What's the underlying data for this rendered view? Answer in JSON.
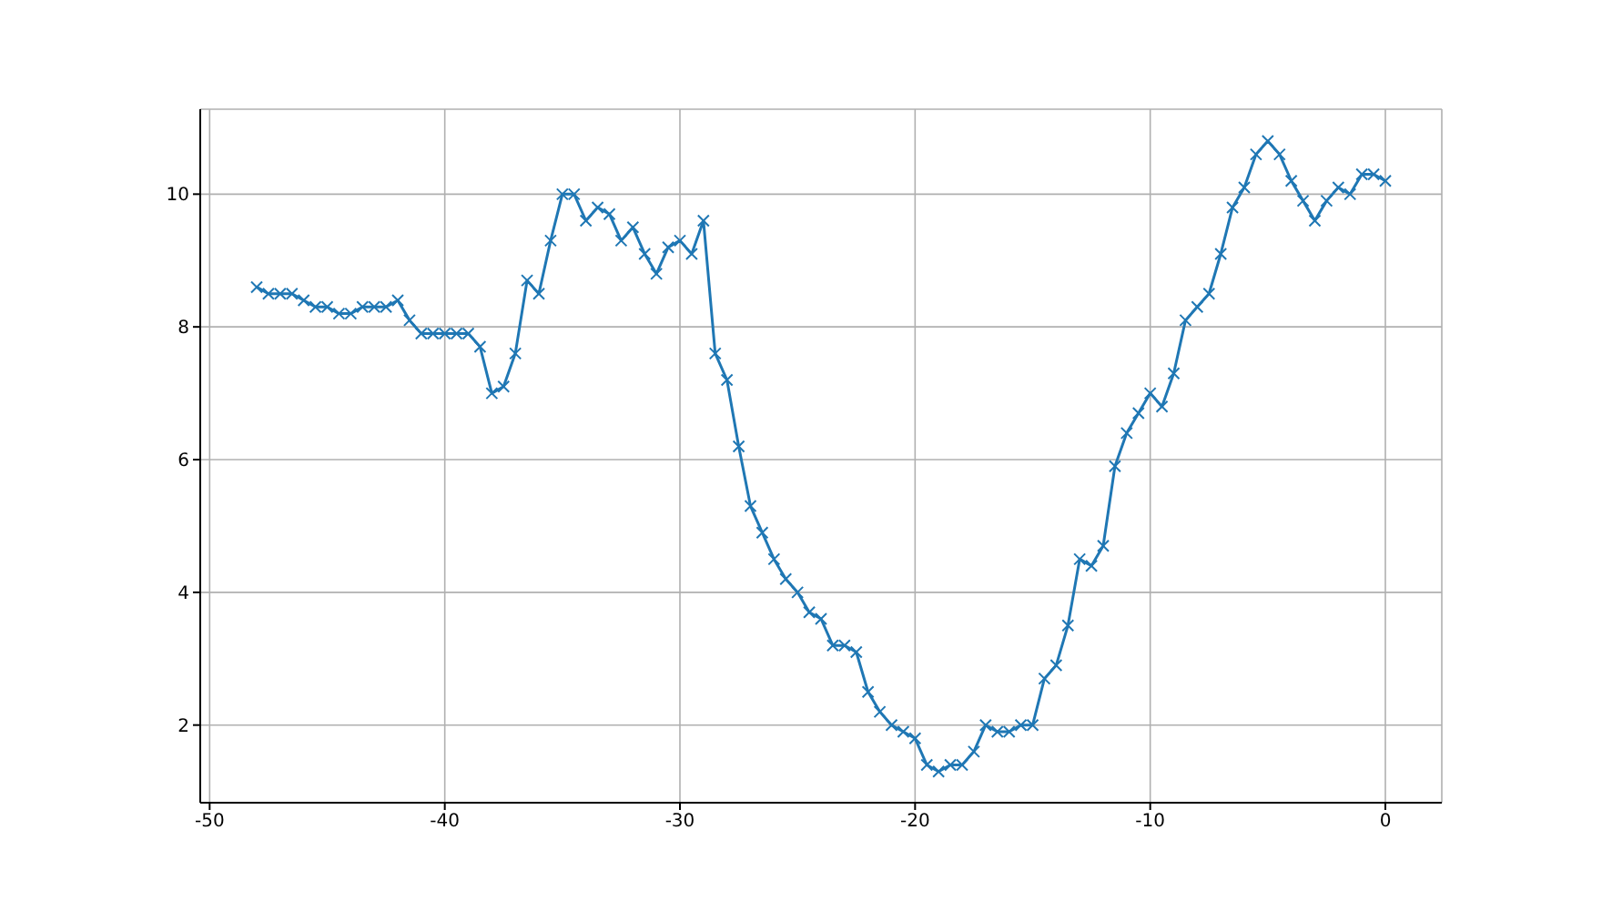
{
  "chart_data": {
    "type": "line",
    "marker": "cross",
    "line_style": "solid",
    "grid": true,
    "x": [
      -48,
      -47.5,
      -47,
      -46.5,
      -46,
      -45.5,
      -45,
      -44.5,
      -44,
      -43.5,
      -43,
      -42.5,
      -42,
      -41.5,
      -41,
      -40.5,
      -40,
      -39.5,
      -39,
      -38.5,
      -38,
      -37.5,
      -37,
      -36.5,
      -36,
      -35.5,
      -35,
      -34.5,
      -34,
      -33.5,
      -33,
      -32.5,
      -32,
      -31.5,
      -31,
      -30.5,
      -30,
      -29.5,
      -29,
      -28.5,
      -28,
      -27.5,
      -27,
      -26.5,
      -26,
      -25.5,
      -25,
      -24.5,
      -24,
      -23.5,
      -23,
      -22.5,
      -22,
      -21.5,
      -21,
      -20.5,
      -20,
      -19.5,
      -19,
      -18.5,
      -18,
      -17.5,
      -17,
      -16.5,
      -16,
      -15.5,
      -15,
      -14.5,
      -14,
      -13.5,
      -13,
      -12.5,
      -12,
      -11.5,
      -11,
      -10.5,
      -10,
      -9.5,
      -9,
      -8.5,
      -8,
      -7.5,
      -7,
      -6.5,
      -6,
      -5.5,
      -5,
      -4.5,
      -4,
      -3.5,
      -3,
      -2.5,
      -2,
      -1.5,
      -1,
      -0.5,
      0
    ],
    "series": [
      {
        "color": "#1f77b4",
        "values": [
          8.6,
          8.5,
          8.5,
          8.5,
          8.4,
          8.3,
          8.3,
          8.2,
          8.2,
          8.3,
          8.3,
          8.3,
          8.4,
          8.1,
          7.9,
          7.9,
          7.9,
          7.9,
          7.9,
          7.7,
          7.0,
          7.1,
          7.6,
          8.7,
          8.5,
          9.3,
          10.0,
          10.0,
          9.6,
          9.8,
          9.7,
          9.3,
          9.5,
          9.1,
          8.8,
          9.2,
          9.3,
          9.1,
          9.6,
          7.6,
          7.2,
          6.2,
          5.3,
          4.9,
          4.5,
          4.2,
          4.0,
          3.7,
          3.6,
          3.2,
          3.2,
          3.1,
          2.5,
          2.2,
          2.0,
          1.9,
          1.8,
          1.4,
          1.3,
          1.4,
          1.4,
          1.6,
          2.0,
          1.9,
          1.9,
          2.0,
          2.0,
          2.7,
          2.9,
          3.5,
          4.5,
          4.4,
          4.7,
          5.9,
          6.4,
          6.7,
          7.0,
          6.8,
          7.3,
          8.1,
          8.3,
          8.5,
          9.1,
          9.8,
          10.1,
          10.6,
          10.8,
          10.6,
          10.2,
          9.9,
          9.6,
          9.9,
          10.1,
          10.0,
          10.3,
          10.3,
          10.2
        ]
      }
    ],
    "xlim": [
      -50.4,
      2.4
    ],
    "xticks": [
      -50,
      -40,
      -30,
      -20,
      -10,
      0
    ],
    "ylim": [
      0.83,
      11.28
    ],
    "yticks": [
      2,
      4,
      6,
      8,
      10
    ]
  }
}
